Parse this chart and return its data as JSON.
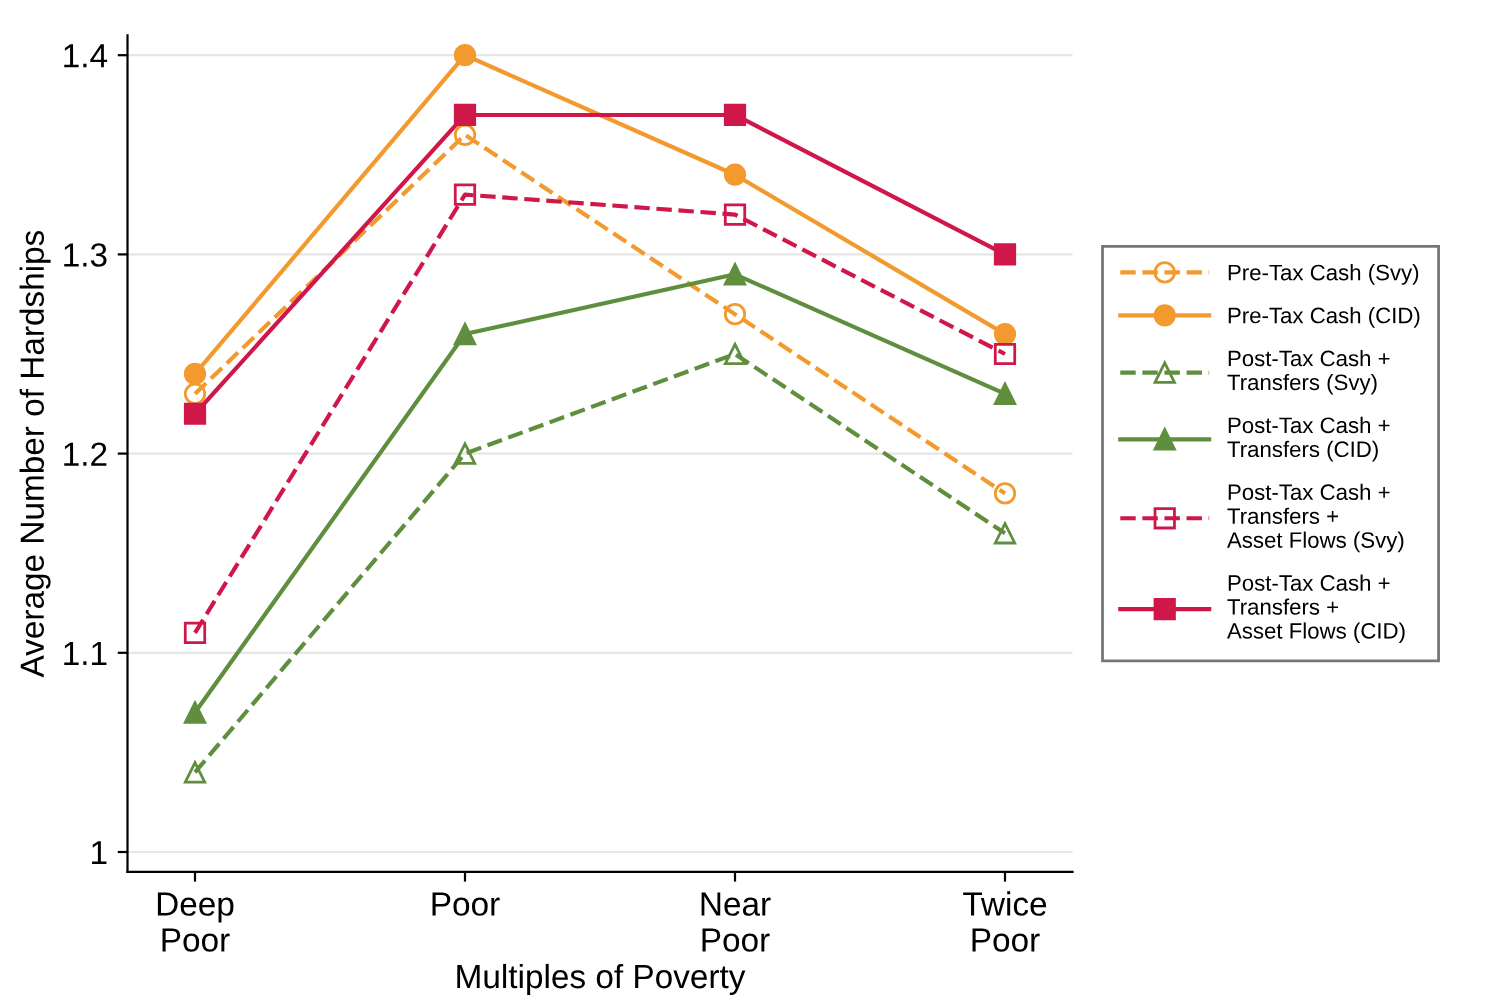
{
  "chart_data": {
    "type": "line",
    "xlabel": "Multiples of Poverty",
    "ylabel": "Average Number of Hardships",
    "categories": [
      "Deep\nPoor",
      "Poor",
      "Near\nPoor",
      "Twice\nPoor"
    ],
    "ylim": [
      0.99,
      1.41
    ],
    "yticks": [
      1,
      1.1,
      1.2,
      1.3,
      1.4
    ],
    "grid": "y",
    "legend": "right",
    "series": [
      {
        "name": "Pre-Tax Cash (Svy)",
        "color": "#f39a2e",
        "marker": "circle",
        "line_style": "dashed",
        "values": [
          1.23,
          1.36,
          1.27,
          1.18
        ]
      },
      {
        "name": "Pre-Tax Cash (CID)",
        "color": "#f39a2e",
        "marker": "circle",
        "line_style": "solid",
        "values": [
          1.24,
          1.4,
          1.34,
          1.26
        ]
      },
      {
        "name": "Post-Tax Cash +\nTransfers (Svy)",
        "color": "#5f8f3e",
        "marker": "triangle",
        "line_style": "dashed",
        "values": [
          1.04,
          1.2,
          1.25,
          1.16
        ]
      },
      {
        "name": "Post-Tax Cash +\nTransfers (CID)",
        "color": "#5f8f3e",
        "marker": "triangle",
        "line_style": "solid",
        "values": [
          1.07,
          1.26,
          1.29,
          1.23
        ]
      },
      {
        "name": "Post-Tax Cash +\nTransfers +\nAsset Flows (Svy)",
        "color": "#d0174a",
        "marker": "square",
        "line_style": "dashed",
        "values": [
          1.11,
          1.33,
          1.32,
          1.25
        ]
      },
      {
        "name": "Post-Tax Cash +\nTransfers +\nAsset Flows (CID)",
        "color": "#d0174a",
        "marker": "square",
        "line_style": "solid",
        "values": [
          1.22,
          1.37,
          1.37,
          1.3
        ]
      }
    ]
  }
}
